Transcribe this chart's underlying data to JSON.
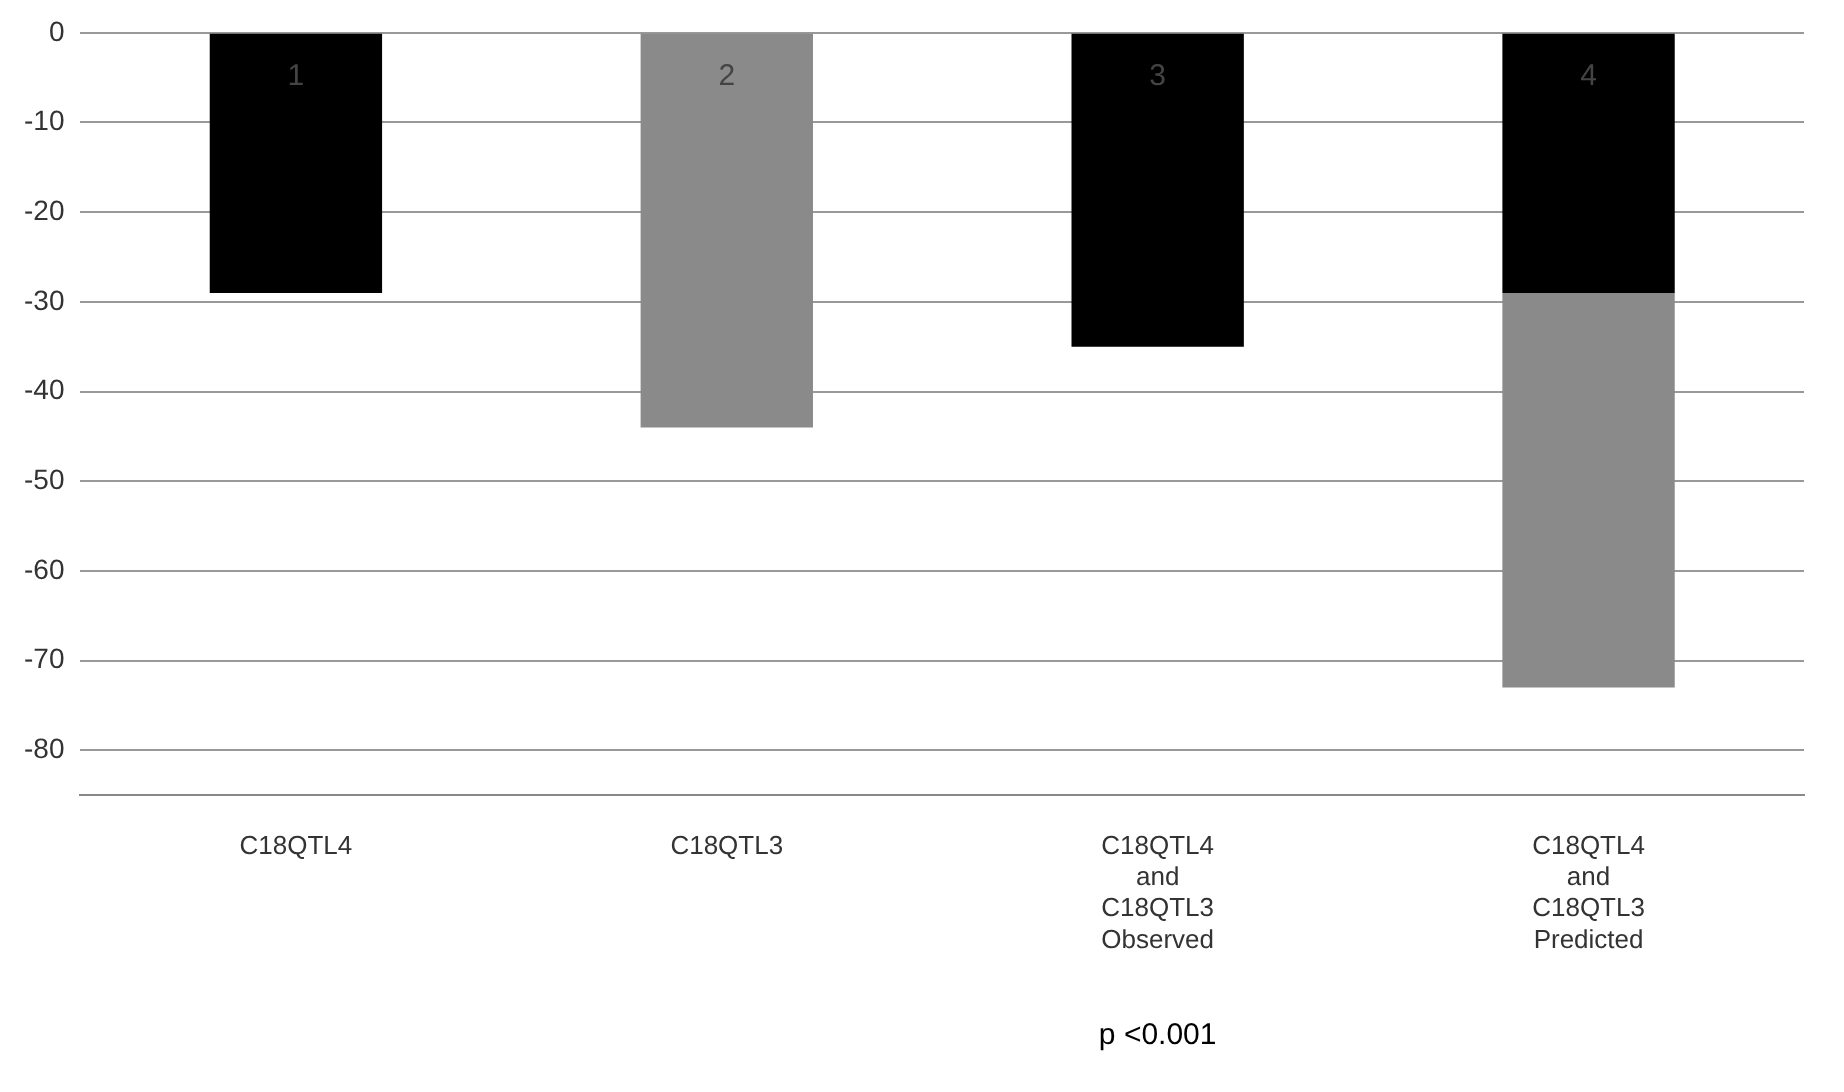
{
  "chart_data": {
    "type": "bar",
    "stacked": true,
    "categories": [
      "C18QTL4",
      "C18QTL3",
      "C18QTL4 and C18QTL3 Observed",
      "C18QTL4 and C18QTL3 Predicted"
    ],
    "series": [
      {
        "color": "#000000",
        "values": [
          -29,
          null,
          -35,
          -29
        ]
      },
      {
        "color": "#8a8a8a",
        "values": [
          null,
          -44,
          null,
          -44
        ]
      }
    ],
    "ylim": [
      -85,
      0
    ],
    "yticks": [
      0,
      -10,
      -20,
      -30,
      -40,
      -50,
      -60,
      -70,
      -80
    ],
    "grid": "y",
    "annotations": [
      "1",
      "2",
      "3",
      "4",
      "p <0.001"
    ]
  }
}
